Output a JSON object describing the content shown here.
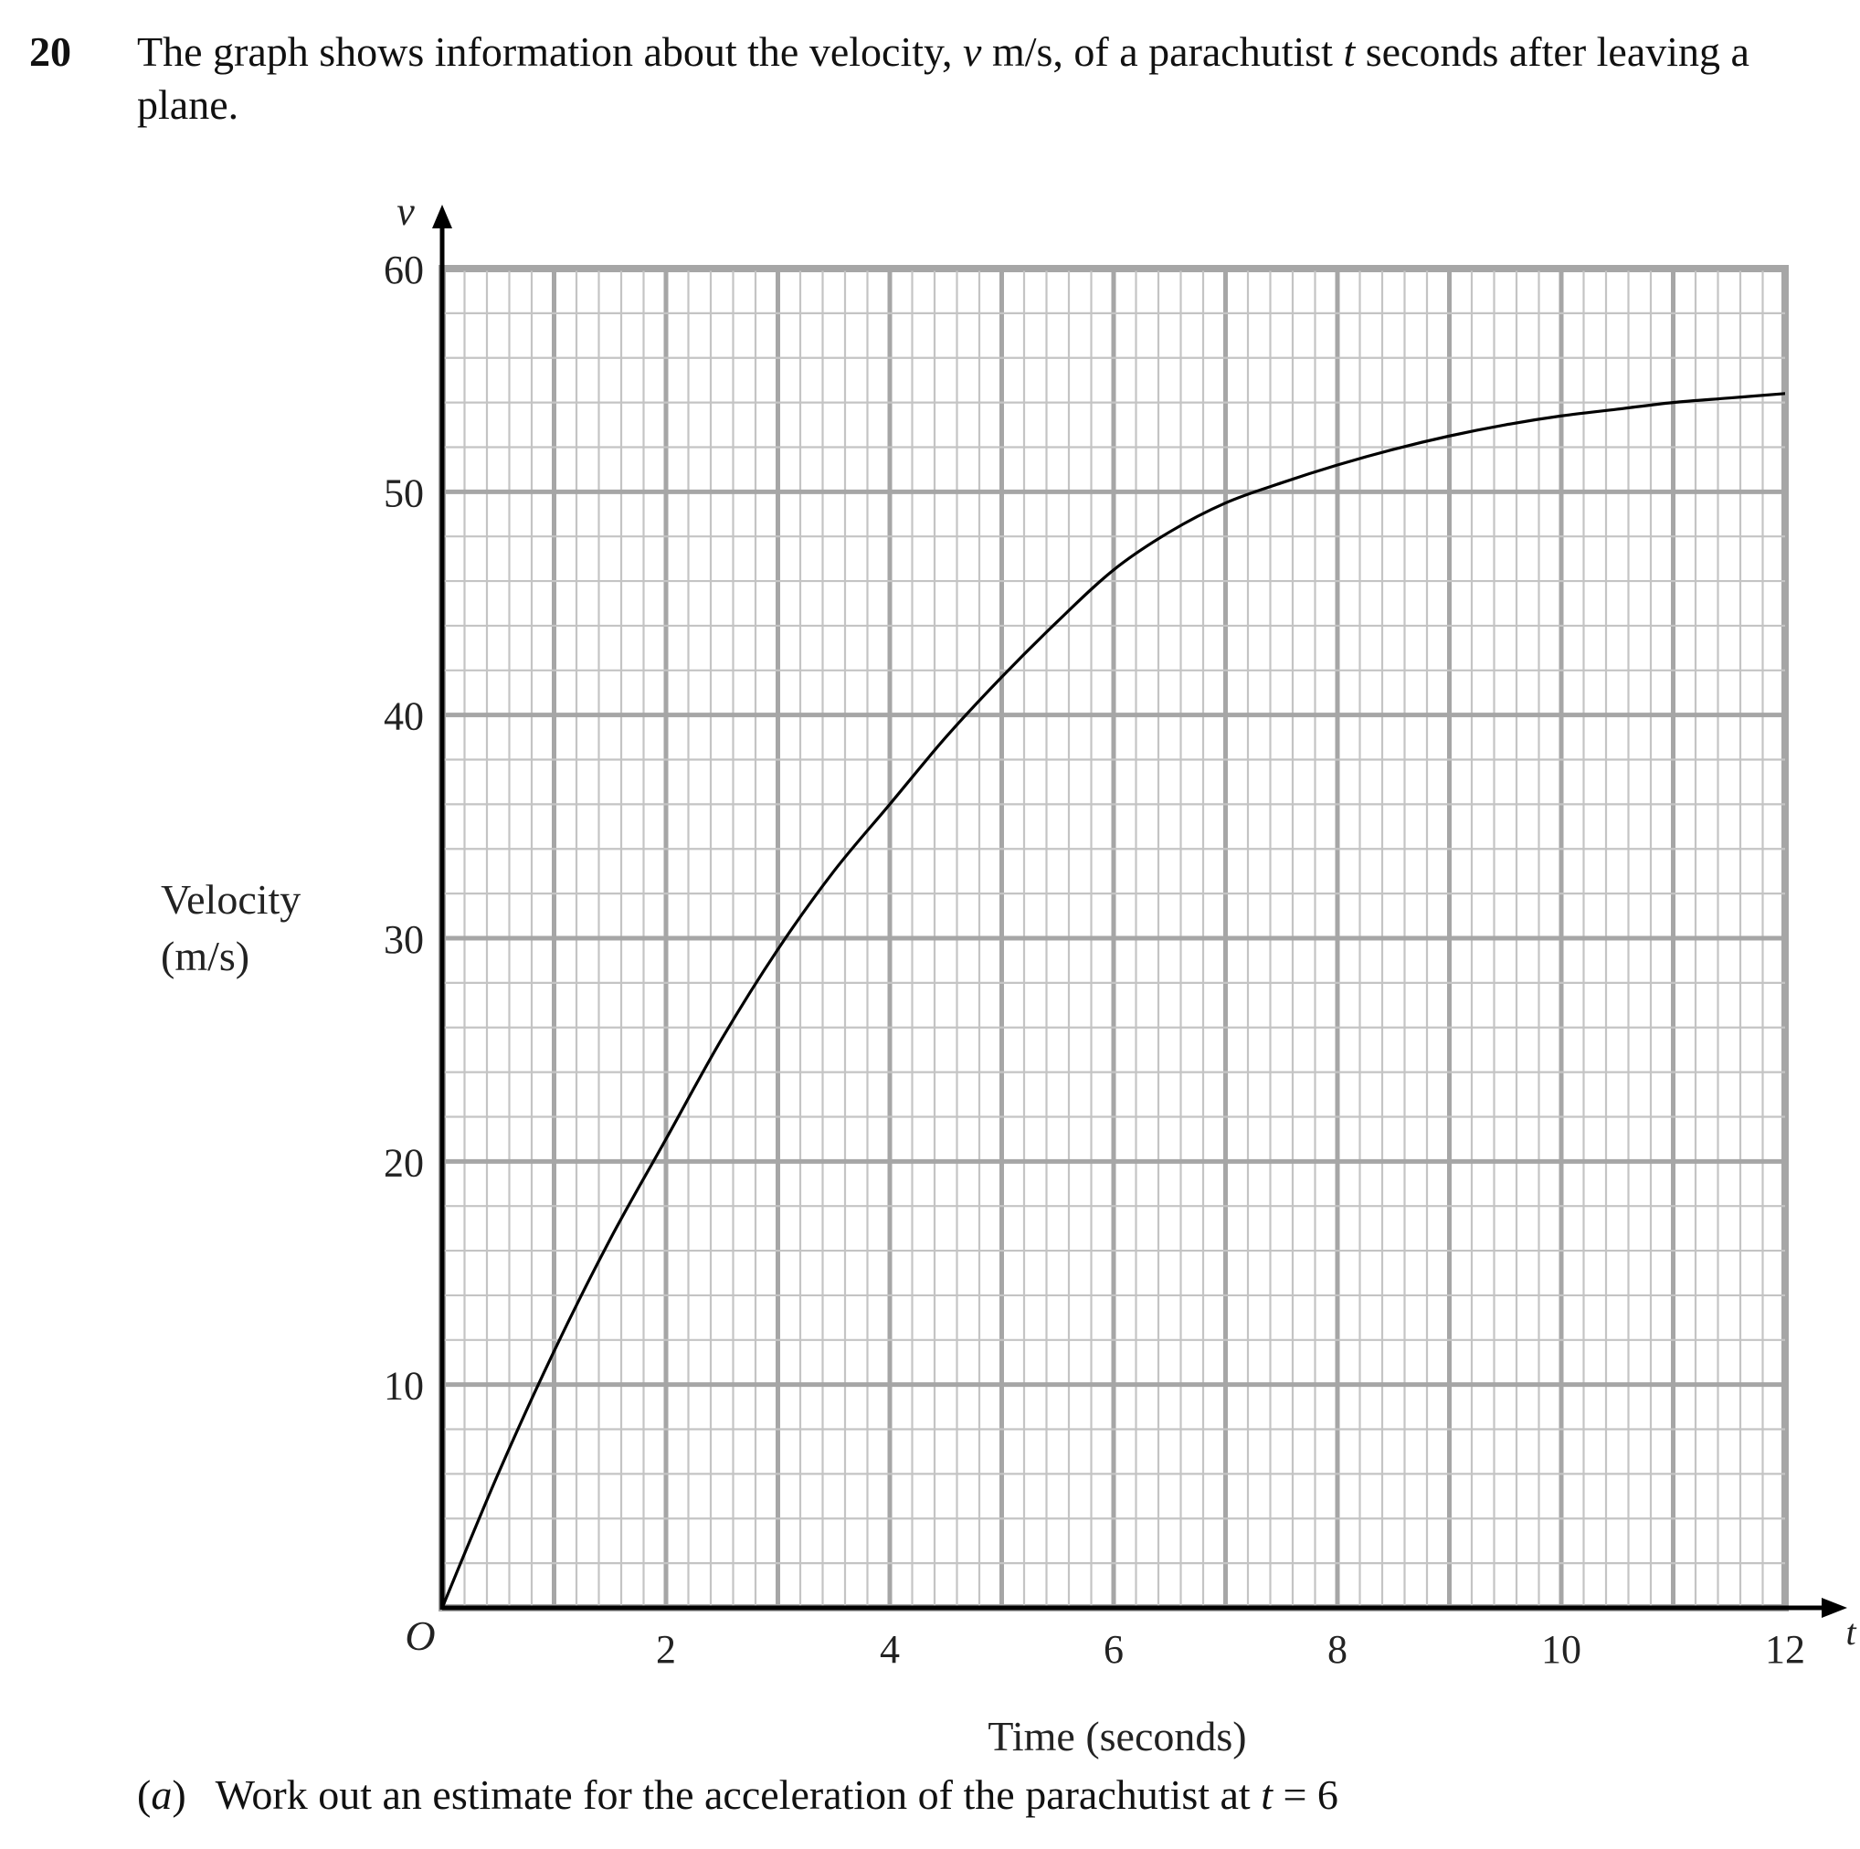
{
  "question": {
    "number": "20",
    "stem_before_v": "The graph shows information about the velocity, ",
    "v_symbol": "v",
    "stem_mid": " m/s, of a parachutist ",
    "t_symbol": "t",
    "stem_after_t": " seconds after leaving a plane."
  },
  "part_a": {
    "label_open": "(",
    "label_letter": "a",
    "label_close": ")",
    "text": "Work out an estimate for the acceleration of the parachutist at ",
    "t_symbol": "t",
    "equals": " = 6"
  },
  "chart_data": {
    "type": "line",
    "title": "",
    "xlabel": "Time (seconds)",
    "ylabel_line1": "Velocity",
    "ylabel_line2": "(m/s)",
    "x_axis_symbol": "t",
    "y_axis_symbol": "v",
    "origin_label": "O",
    "xlim": [
      0,
      12
    ],
    "ylim": [
      0,
      60
    ],
    "x_ticks": [
      2,
      4,
      6,
      8,
      10,
      12
    ],
    "x_tick_labels": [
      "2",
      "4",
      "6",
      "8",
      "10",
      "12"
    ],
    "y_ticks": [
      10,
      20,
      30,
      40,
      50,
      60
    ],
    "y_tick_labels": [
      "10",
      "20",
      "30",
      "40",
      "50",
      "60"
    ],
    "grid": true,
    "grid_minor_step": [
      0.2,
      2
    ],
    "grid_major_step": [
      1,
      10
    ],
    "colors": {
      "curve": "#000000",
      "axis": "#000000",
      "grid_major": "#a6a6a6",
      "grid_minor": "#c4c4c4"
    },
    "series": [
      {
        "x": [
          0,
          0.5,
          1,
          1.5,
          2,
          2.5,
          3,
          3.5,
          4,
          4.5,
          5,
          5.5,
          6,
          6.5,
          7,
          7.5,
          8,
          8.5,
          9,
          9.5,
          10,
          10.5,
          11,
          11.5,
          12
        ],
        "y": [
          0,
          6,
          11.5,
          16.5,
          21,
          25.5,
          29.5,
          33,
          36,
          39,
          41.7,
          44.2,
          46.5,
          48.2,
          49.5,
          50.4,
          51.2,
          51.9,
          52.5,
          53,
          53.4,
          53.7,
          54,
          54.2,
          54.4
        ]
      }
    ]
  }
}
